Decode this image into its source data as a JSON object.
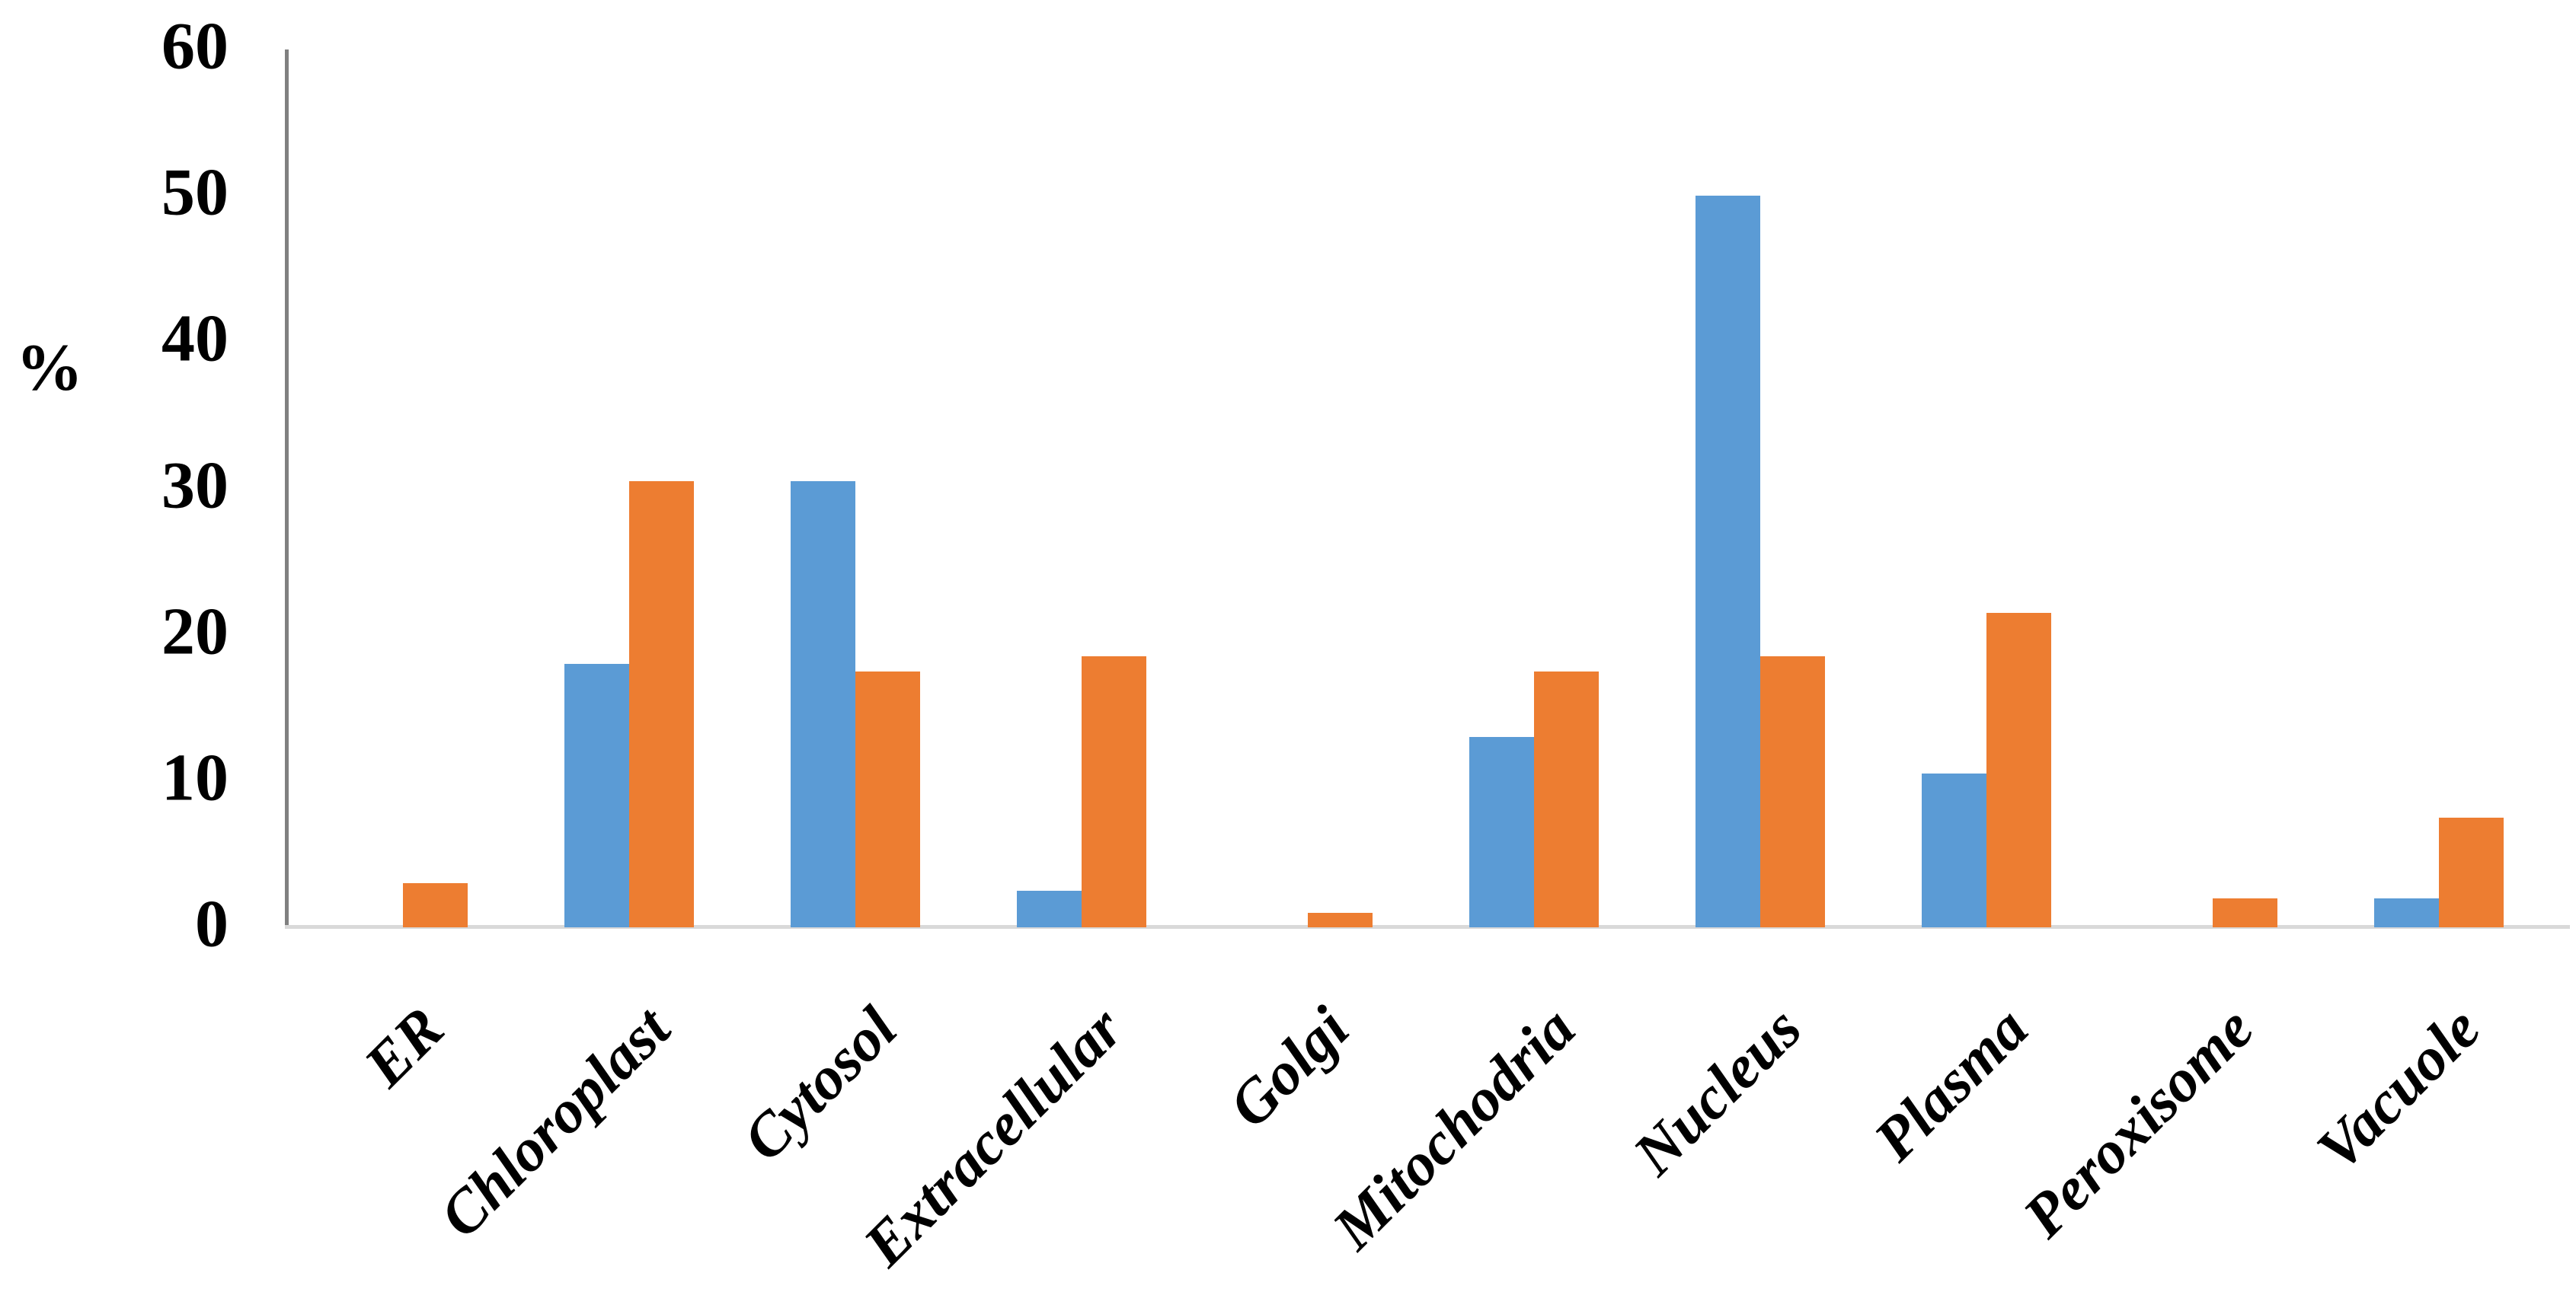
{
  "page": {
    "background": "#ffffff"
  },
  "chart_data": {
    "type": "bar",
    "title": "",
    "xlabel": "",
    "ylabel": "%",
    "ylim": [
      0,
      60
    ],
    "yticks": [
      0,
      10,
      20,
      30,
      40,
      50,
      60
    ],
    "grid": false,
    "legend": "none",
    "axis_color": "#808080",
    "baseline_color": "#d9d9d9",
    "text_color": "#000000",
    "categories": [
      "ER",
      "Chloroplast",
      "Cytosol",
      "Extracellular",
      "Golgi",
      "Mitochodria",
      "Nucleus",
      "Plasma",
      "Peroxisome",
      "Vacuole"
    ],
    "series": [
      {
        "name": "blue",
        "color": "#5B9BD5",
        "values": [
          0,
          18,
          30.5,
          2.5,
          0,
          13,
          50,
          10.5,
          0,
          2
        ]
      },
      {
        "name": "orange",
        "color": "#ED7D31",
        "values": [
          3,
          30.5,
          17.5,
          18.5,
          1,
          17.5,
          18.5,
          21.5,
          2,
          7.5
        ]
      }
    ]
  }
}
